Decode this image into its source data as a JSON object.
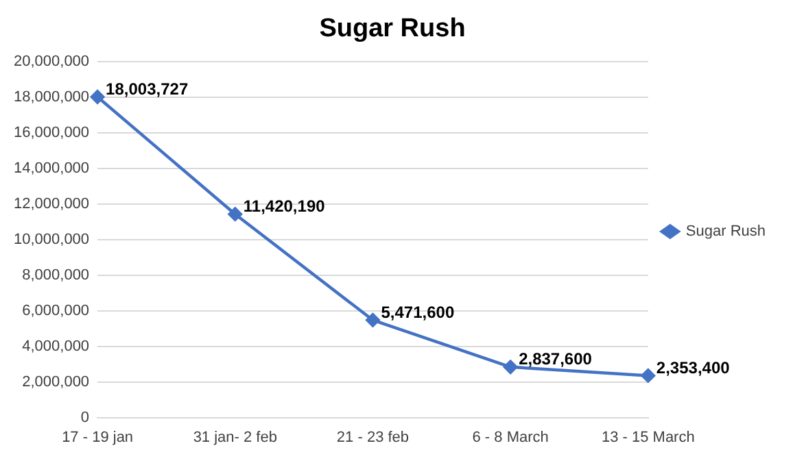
{
  "chart_data": {
    "type": "line",
    "title": "Sugar Rush",
    "categories": [
      "17 - 19 jan",
      "31 jan- 2 feb",
      "21 - 23 feb",
      "6 - 8 March",
      "13 - 15 March"
    ],
    "series": [
      {
        "name": "Sugar Rush",
        "color": "#4472c4",
        "values": [
          18003727,
          11420190,
          5471600,
          2837600,
          2353400
        ],
        "value_labels": [
          "18,003,727",
          "11,420,190",
          "5,471,600",
          "2,837,600",
          "2,353,400"
        ]
      }
    ],
    "ylim": [
      0,
      20000000
    ],
    "yticks": [
      {
        "value": 0,
        "label": "0"
      },
      {
        "value": 2000000,
        "label": "2,000,000"
      },
      {
        "value": 4000000,
        "label": "4,000,000"
      },
      {
        "value": 6000000,
        "label": "6,000,000"
      },
      {
        "value": 8000000,
        "label": "8,000,000"
      },
      {
        "value": 10000000,
        "label": "10,000,000"
      },
      {
        "value": 12000000,
        "label": "12,000,000"
      },
      {
        "value": 14000000,
        "label": "14,000,000"
      },
      {
        "value": 16000000,
        "label": "16,000,000"
      },
      {
        "value": 18000000,
        "label": "18,000,000"
      },
      {
        "value": 20000000,
        "label": "20,000,000"
      }
    ],
    "grid": "y",
    "legend": "right",
    "marker": "diamond"
  }
}
